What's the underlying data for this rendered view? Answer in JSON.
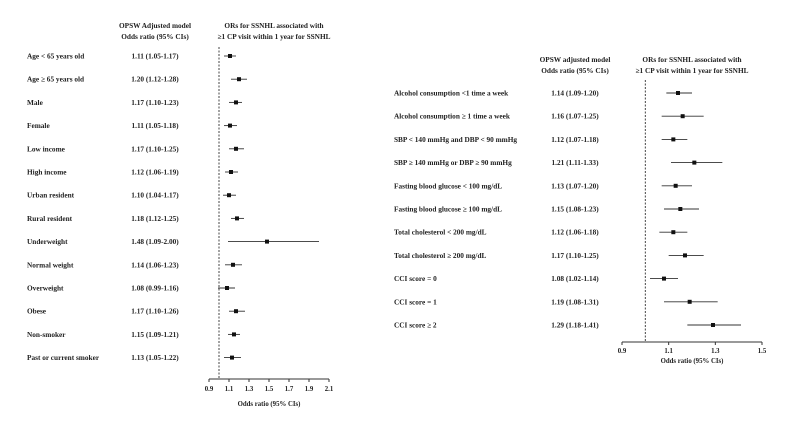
{
  "chart_data": [
    {
      "type": "forest",
      "header_col": [
        "OPSW Adjusted model",
        "Odds  ratio (95% CIs)"
      ],
      "header_plot": [
        "ORs for SSNHL associated with",
        "≥1 CP visit within 1 year for SSNHL"
      ],
      "xlabel": "Odds  ratio (95% CIs)",
      "xlim": [
        0.9,
        2.1
      ],
      "xticks": [
        "0.9",
        "1.1",
        "1.3",
        "1.5",
        "1.7",
        "1.9",
        "2.1"
      ],
      "reference_line": 1.0,
      "rows": [
        {
          "label": "Age < 65 years old",
          "text": "1.11 (1.05-1.17)",
          "or": 1.11,
          "lo": 1.05,
          "hi": 1.17
        },
        {
          "label": "Age ≥ 65 years old",
          "text": "1.20 (1.12-1.28)",
          "or": 1.2,
          "lo": 1.12,
          "hi": 1.28
        },
        {
          "label": "Male",
          "text": "1.17 (1.10-1.23)",
          "or": 1.17,
          "lo": 1.1,
          "hi": 1.23
        },
        {
          "label": "Female",
          "text": "1.11 (1.05-1.18)",
          "or": 1.11,
          "lo": 1.05,
          "hi": 1.18
        },
        {
          "label": "Low income",
          "text": "1.17 (1.10-1.25)",
          "or": 1.17,
          "lo": 1.1,
          "hi": 1.25
        },
        {
          "label": "High income",
          "text": "1.12 (1.06-1.19)",
          "or": 1.12,
          "lo": 1.06,
          "hi": 1.19
        },
        {
          "label": "Urban resident",
          "text": "1.10 (1.04-1.17)",
          "or": 1.1,
          "lo": 1.04,
          "hi": 1.17
        },
        {
          "label": "Rural resident",
          "text": "1.18 (1.12-1.25)",
          "or": 1.18,
          "lo": 1.12,
          "hi": 1.25
        },
        {
          "label": "Underweight",
          "text": "1.48 (1.09-2.00)",
          "or": 1.48,
          "lo": 1.09,
          "hi": 2.0
        },
        {
          "label": "Normal weight",
          "text": "1.14 (1.06-1.23)",
          "or": 1.14,
          "lo": 1.06,
          "hi": 1.23
        },
        {
          "label": "Overweight",
          "text": "1.08 (0.99-1.16)",
          "or": 1.08,
          "lo": 0.99,
          "hi": 1.16
        },
        {
          "label": "Obese",
          "text": "1.17 (1.10-1.26)",
          "or": 1.17,
          "lo": 1.1,
          "hi": 1.26
        },
        {
          "label": "Non-smoker",
          "text": "1.15 (1.09-1.21)",
          "or": 1.15,
          "lo": 1.09,
          "hi": 1.21
        },
        {
          "label": "Past or current smoker",
          "text": "1.13 (1.05-1.22)",
          "or": 1.13,
          "lo": 1.05,
          "hi": 1.22
        }
      ]
    },
    {
      "type": "forest",
      "header_col": [
        "OPSW adjusted model",
        "Odds  ratio (95% CIs)"
      ],
      "header_plot": [
        "ORs for SSNHL associated with",
        "≥1 CP visit within 1 year for SSNHL"
      ],
      "xlabel": "Odds  ratio (95% CIs)",
      "xlim": [
        0.9,
        1.5
      ],
      "xticks": [
        "0.9",
        "1.1",
        "1.3",
        "1.5"
      ],
      "reference_line": 1.0,
      "rows": [
        {
          "label": "Alcohol consumption <1 time a week",
          "text": "1.14 (1.09-1.20)",
          "or": 1.14,
          "lo": 1.09,
          "hi": 1.2
        },
        {
          "label": "Alcohol consumption ≥ 1 time a week",
          "text": "1.16 (1.07-1.25)",
          "or": 1.16,
          "lo": 1.07,
          "hi": 1.25
        },
        {
          "label": "SBP < 140 mmHg and DBP < 90 mmHg",
          "text": "1.12 (1.07-1.18)",
          "or": 1.12,
          "lo": 1.07,
          "hi": 1.18
        },
        {
          "label": "SBP ≥  140 mmHg or DBP ≥  90 mmHg",
          "text": "1.21 (1.11-1.33)",
          "or": 1.21,
          "lo": 1.11,
          "hi": 1.33
        },
        {
          "label": "Fasting blood glucose < 100 mg/dL",
          "text": "1.13 (1.07-1.20)",
          "or": 1.13,
          "lo": 1.07,
          "hi": 1.2
        },
        {
          "label": "Fasting blood glucose ≥ 100 mg/dL",
          "text": "1.15 (1.08-1.23)",
          "or": 1.15,
          "lo": 1.08,
          "hi": 1.23
        },
        {
          "label": "Total cholesterol < 200 mg/dL",
          "text": "1.12 (1.06-1.18)",
          "or": 1.12,
          "lo": 1.06,
          "hi": 1.18
        },
        {
          "label": "Total cholesterol ≥  200 mg/dL",
          "text": "1.17 (1.10-1.25)",
          "or": 1.17,
          "lo": 1.1,
          "hi": 1.25
        },
        {
          "label": "CCI score = 0",
          "text": "1.08 (1.02-1.14)",
          "or": 1.08,
          "lo": 1.02,
          "hi": 1.14
        },
        {
          "label": "CCI score = 1",
          "text": "1.19 (1.08-1.31)",
          "or": 1.19,
          "lo": 1.08,
          "hi": 1.31
        },
        {
          "label": "CCI score ≥ 2",
          "text": "1.29 (1.18-1.41)",
          "or": 1.29,
          "lo": 1.18,
          "hi": 1.41
        }
      ]
    }
  ]
}
